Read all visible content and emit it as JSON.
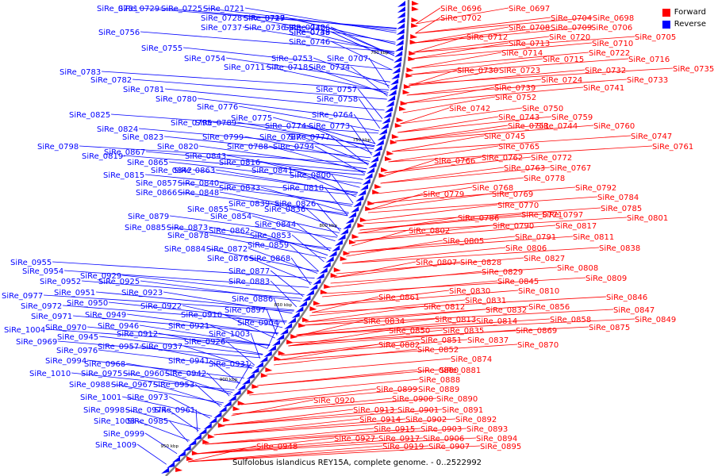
{
  "legend": {
    "forward_label": "Forward",
    "reverse_label": "Reverse",
    "forward_color": "#ff0000",
    "reverse_color": "#0000ff"
  },
  "caption": "Sulfolobus islandicus REY15A, complete genome. - 0..2522992",
  "backbone_color": "#808080",
  "scale_ticks": [
    "700 kbp",
    "750 kbp",
    "800 kbp",
    "850 kbp",
    "900 kbp",
    "950 kbp"
  ],
  "reverse_labels": [
    "SiRe_0731",
    "SiRe_0729",
    "SiRe_0725",
    "SiRe_0721",
    "SiRe_0728",
    "SiRe_0719",
    "SiRe_0727",
    "SiRe_0737",
    "SiRe_0736",
    "SiRe_0756",
    "SiRe_0755",
    "SiRe_0754",
    "SiRe_0753",
    "SiRe_0707",
    "SiRe_0711",
    "SiRe_0718",
    "SiRe_0726",
    "SiRe_0734",
    "SiRe_0740",
    "SiRe_0738",
    "SiRe_0749",
    "SiRe_0746",
    "SiRe_0757",
    "SiRe_0758",
    "SiRe_0783",
    "SiRe_0782",
    "SiRe_0781",
    "SiRe_0780",
    "SiRe_0776",
    "SiRe_0775",
    "SiRe_0774",
    "SiRe_0764",
    "SiRe_0773",
    "SiRe_0777",
    "SiRe_0825",
    "SiRe_0824",
    "SiRe_0795",
    "SiRe_0789",
    "SiRe_0799",
    "SiRe_0787",
    "SiRe_0788",
    "SiRe_0794",
    "SiRe_0823",
    "SiRe_0820",
    "SiRe_0798",
    "SiRe_0867",
    "SiRe_0843",
    "SiRe_0819",
    "SiRe_0865",
    "SiRe_0864",
    "SiRe_0842",
    "SiRe_0816",
    "SiRe_0863",
    "SiRe_0841",
    "SiRe_0815",
    "SiRe_0800",
    "SiRe_0840",
    "SiRe_0857",
    "SiRe_0848",
    "SiRe_0833",
    "SiRe_0818",
    "SiRe_0866",
    "SiRe_0839",
    "SiRe_0826",
    "SiRe_0855",
    "SiRe_0836",
    "SiRe_0879",
    "SiRe_0854",
    "SiRe_0844",
    "SiRe_0885",
    "SiRe_0873",
    "SiRe_0862",
    "SiRe_0853",
    "SiRe_0878",
    "SiRe_0859",
    "SiRe_0884",
    "SiRe_0872",
    "SiRe_0876",
    "SiRe_0868",
    "SiRe_0955",
    "SiRe_0954",
    "SiRe_0877",
    "SiRe_0929",
    "SiRe_0952",
    "SiRe_0925",
    "SiRe_0883",
    "SiRe_0977",
    "SiRe_0951",
    "SiRe_0923",
    "SiRe_0886",
    "SiRe_0972",
    "SiRe_0950",
    "SiRe_0922",
    "SiRe_0897",
    "SiRe_0971",
    "SiRe_0949",
    "SiRe_0910",
    "SiRe_0904",
    "SiRe_1004",
    "SiRe_0970",
    "SiRe_0946",
    "SiRe_0921",
    "SiRe_0912",
    "SiRe_1003",
    "SiRe_0969",
    "SiRe_0945",
    "SiRe_0926",
    "SiRe_0976",
    "SiRe_0957",
    "SiRe_0937",
    "SiRe_0924",
    "SiRe_0994",
    "SiRe_0968",
    "SiRe_0941",
    "SiRe_0931",
    "SiRe_1010",
    "SiRe_0975",
    "SiRe_0960",
    "SiRe_0942",
    "SiRe_0988",
    "SiRe_0967",
    "SiRe_0953",
    "SiRe_1001",
    "SiRe_0973",
    "SiRe_0998",
    "SiRe_0961",
    "SiRe_0974",
    "SiRe_1008",
    "SiRe_0985",
    "SiRe_0999",
    "SiRe_1009"
  ],
  "forward_labels": [
    "SiRe_0696",
    "SiRe_0697",
    "SiRe_0702",
    "SiRe_0704",
    "SiRe_0698",
    "SiRe_0708",
    "SiRe_0709",
    "SiRe_0706",
    "SiRe_0705",
    "SiRe_0712",
    "SiRe_0710",
    "SiRe_0713",
    "SiRe_0720",
    "SiRe_0714",
    "SiRe_0722",
    "SiRe_0715",
    "SiRe_0716",
    "SiRe_0735",
    "SiRe_0730",
    "SiRe_0723",
    "SiRe_0732",
    "SiRe_0724",
    "SiRe_0733",
    "SiRe_0739",
    "SiRe_0741",
    "SiRe_0752",
    "SiRe_0742",
    "SiRe_0750",
    "SiRe_0743",
    "SiRe_0759",
    "SiRe_0751",
    "SiRe_0744",
    "SiRe_0760",
    "SiRe_0745",
    "SiRe_0747",
    "SiRe_0761",
    "SiRe_0765",
    "SiRe_0762",
    "SiRe_0772",
    "SiRe_0766",
    "SiRe_0763",
    "SiRe_0767",
    "SiRe_0778",
    "SiRe_0768",
    "SiRe_0792",
    "SiRe_0779",
    "SiRe_0769",
    "SiRe_0784",
    "SiRe_0770",
    "SiRe_0785",
    "SiRe_0771",
    "SiRe_0797",
    "SiRe_0786",
    "SiRe_0801",
    "SiRe_0790",
    "SiRe_0817",
    "SiRe_0802",
    "SiRe_0791",
    "SiRe_0811",
    "SiRe_0805",
    "SiRe_0806",
    "SiRe_0838",
    "SiRe_0827",
    "SiRe_0807",
    "SiRe_0828",
    "SiRe_0808",
    "SiRe_0829",
    "SiRe_0809",
    "SiRe_0845",
    "SiRe_0830",
    "SiRe_0810",
    "SiRe_0861",
    "SiRe_0846",
    "SiRe_0831",
    "SiRe_0812",
    "SiRe_0856",
    "SiRe_0847",
    "SiRe_0832",
    "SiRe_0813",
    "SiRe_0858",
    "SiRe_0849",
    "SiRe_0834",
    "SiRe_0814",
    "SiRe_0875",
    "SiRe_0850",
    "SiRe_0835",
    "SiRe_0869",
    "SiRe_0851",
    "SiRe_0837",
    "SiRe_0882",
    "SiRe_0870",
    "SiRe_0852",
    "SiRe_0874",
    "SiRe_0880",
    "SiRe_0881",
    "SiRe_0888",
    "SiRe_0899",
    "SiRe_0889",
    "SiRe_0900",
    "SiRe_0890",
    "SiRe_0920",
    "SiRe_0913",
    "SiRe_0901",
    "SiRe_0891",
    "SiRe_0914",
    "SiRe_0902",
    "SiRe_0892",
    "SiRe_0915",
    "SiRe_0903",
    "SiRe_0893",
    "SiRe_0927",
    "SiRe_0917",
    "SiRe_0906",
    "SiRe_0894",
    "SiRe_0948",
    "SiRe_0919",
    "SiRe_0907",
    "SiRe_0895"
  ]
}
